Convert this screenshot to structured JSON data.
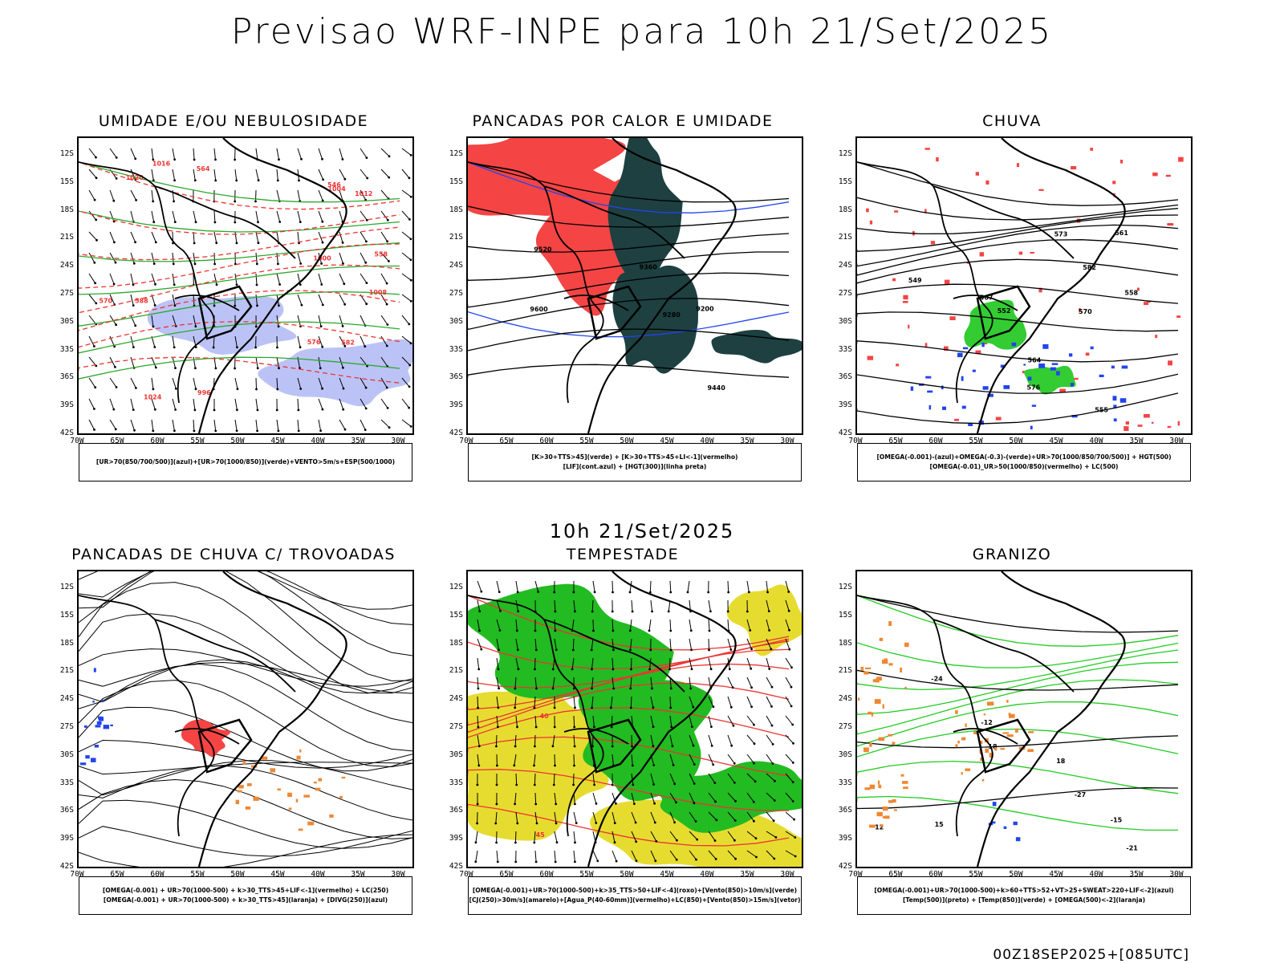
{
  "header": {
    "title": "Previsao WRF-INPE  para 10h 21/Set/2025",
    "mid_title": "10h 21/Set/2025",
    "run_label": "00Z18SEP2025+[085UTC]"
  },
  "axes": {
    "lat_labels": [
      "12S",
      "15S",
      "18S",
      "21S",
      "24S",
      "27S",
      "30S",
      "33S",
      "36S",
      "39S",
      "42S"
    ],
    "lon_labels": [
      "70W",
      "65W",
      "60W",
      "55W",
      "50W",
      "45W",
      "40W",
      "35W",
      "30W"
    ]
  },
  "panels": [
    {
      "title": "UMIDADE E/OU NEBULOSIDADE",
      "legend": [
        "[UR>70(850/700/500)](azul)+[UR>70(1000/850)](verde)+VENTO>5m/s+ESP(500/1000)"
      ],
      "contour_labels": [
        "570",
        "1008",
        "1016",
        "1012",
        "1000",
        "1024",
        "1020",
        "576",
        "582",
        "996",
        "1004",
        "588",
        "564",
        "558",
        "546"
      ]
    },
    {
      "title": "PANCADAS POR CALOR E UMIDADE",
      "legend": [
        "[K>30+TTS>45](verde) + [K>30+TTS>45+LI<-1](vermelho)",
        "[LIF](cont.azul) + [HGT(300)](linha preta)"
      ],
      "contour_labels": [
        "9600",
        "9520",
        "9440",
        "9360",
        "9280",
        "9200"
      ]
    },
    {
      "title": "CHUVA",
      "legend": [
        "[OMEGA(-0.001)-(azul)+OMEGA(-0.3)-(verde)+UR>70(1000/850/700/500)] + HGT(500)",
        "[OMEGA(-0.01)_UR>50(1000/850)(vermelho) + LC(500)"
      ],
      "contour_labels": [
        "582",
        "576",
        "573",
        "570",
        "567",
        "564",
        "561",
        "558",
        "555",
        "552",
        "549"
      ]
    },
    {
      "title": "PANCADAS DE CHUVA C/ TROVOADAS",
      "legend": [
        "[OMEGA(-0.001) + UR>70(1000-500) + k>30_TTS>45+LIF<-1](vermelho) + LC(250)",
        "[OMEGA(-0.001) + UR>70(1000-500) + k>30_TTS>45](laranja) + [DIVG(250)](azul)"
      ],
      "contour_labels": []
    },
    {
      "title": "TEMPESTADE",
      "legend": [
        "[OMEGA(-0.001)+UR>70(1000-500)+k>35_TTS>50+LIF<-4](roxo)+[Vento(850)>10m/s](verde)",
        "[CJ(250)>30m/s](amarelo)+[Agua_P(40-60mm)](vermelho)+LC(850)+[Vento(850)>15m/s](vetor)"
      ],
      "contour_labels": [
        "45",
        "40"
      ]
    },
    {
      "title": "GRANIZO",
      "legend": [
        "[OMEGA(-0.001)+UR>70(1000-500)+k>60+TTS>52+VT>25+SWEAT>220+LIF<-2](azul)",
        "[Temp(500)](preto) + [Temp(850)](verde) + [OMEGA(500)<-2](laranja)"
      ],
      "contour_labels": [
        "-12",
        "-15",
        "-18",
        "-21",
        "-24",
        "-27",
        "12",
        "15",
        "18"
      ]
    }
  ]
}
